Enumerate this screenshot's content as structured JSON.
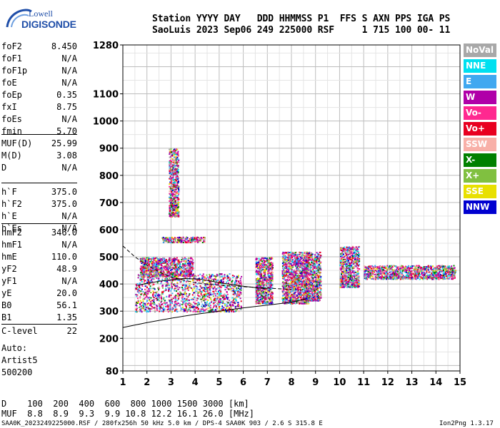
{
  "logo": {
    "line1": "Lowell",
    "line2": "DIGISONDE"
  },
  "header": {
    "line1": "Station YYYY DAY   DDD HHMMSS P1  FFS S AXN PPS IGA PS",
    "line2": "SaoLuis 2023 Sep06 249 225000 RSF     1 715 100 00- 11"
  },
  "params": {
    "group1": [
      {
        "name": "foF2",
        "value": "8.450"
      },
      {
        "name": "foF1",
        "value": "N/A"
      },
      {
        "name": "foF1p",
        "value": "N/A"
      },
      {
        "name": "foE",
        "value": "N/A"
      },
      {
        "name": "foEp",
        "value": "0.35"
      },
      {
        "name": "fxI",
        "value": "8.75"
      },
      {
        "name": "foEs",
        "value": "N/A"
      },
      {
        "name": "fmin",
        "value": "5.70"
      }
    ],
    "group2": [
      {
        "name": "MUF(D)",
        "value": "25.99"
      },
      {
        "name": "M(D)",
        "value": "3.08"
      },
      {
        "name": "D",
        "value": "N/A"
      }
    ],
    "group3": [
      {
        "name": "h`F",
        "value": "375.0"
      },
      {
        "name": "h`F2",
        "value": "375.0"
      },
      {
        "name": "h`E",
        "value": "N/A"
      },
      {
        "name": "h`Es",
        "value": "N/A"
      }
    ],
    "group4": [
      {
        "name": "hmF2",
        "value": "346.0"
      },
      {
        "name": "hmF1",
        "value": "N/A"
      },
      {
        "name": "hmE",
        "value": "110.0"
      },
      {
        "name": "yF2",
        "value": "48.9"
      },
      {
        "name": "yF1",
        "value": "N/A"
      },
      {
        "name": "yE",
        "value": "20.0"
      },
      {
        "name": "B0",
        "value": "56.1"
      },
      {
        "name": "B1",
        "value": "1.35"
      }
    ],
    "clevel": {
      "name": "C-level",
      "value": "22"
    },
    "auto": [
      "Auto:",
      "Artist5",
      "500200"
    ]
  },
  "footer": {
    "d_row": "D    100  200  400  600  800 1000 1500 3000 [km]",
    "muf_row": "MUF  8.8  8.9  9.3  9.9 10.8 12.2 16.1 26.0 [MHz]",
    "status": "SAA0K_2023249225000.RSF / 280fx256h 50 kHz 5.0 km / DPS-4 SAA0K 903 / 2.6 S 315.8 E",
    "version": "Ion2Png 1.3.17"
  },
  "legend": [
    {
      "label": "NoVal",
      "color": "#a8a8a8"
    },
    {
      "label": "NNE",
      "color": "#00e0f0"
    },
    {
      "label": "E",
      "color": "#40a8f0"
    },
    {
      "label": "W",
      "color": "#b000a8"
    },
    {
      "label": "Vo-",
      "color": "#ff2890"
    },
    {
      "label": "Vo+",
      "color": "#e80020"
    },
    {
      "label": "SSW",
      "color": "#f8b0a8"
    },
    {
      "label": "X-",
      "color": "#008000"
    },
    {
      "label": "X+",
      "color": "#80c040"
    },
    {
      "label": "SSE",
      "color": "#e8e000"
    },
    {
      "label": "NNW",
      "color": "#0000d0"
    }
  ],
  "chart_data": {
    "type": "scatter",
    "xlim": [
      1,
      15
    ],
    "ylim": [
      80,
      1280
    ],
    "y_ticks": [
      80,
      200,
      300,
      400,
      500,
      600,
      700,
      800,
      900,
      1000,
      1100,
      1280
    ],
    "x_ticks": [
      1,
      2,
      3,
      4,
      5,
      6,
      7,
      8,
      9,
      10,
      11,
      12,
      13,
      14,
      15
    ],
    "grid": true,
    "traces": [
      {
        "name": "upper dashed",
        "style": "dashed",
        "points": [
          [
            1,
            540
          ],
          [
            1.5,
            500
          ],
          [
            2,
            470
          ],
          [
            2.5,
            445
          ],
          [
            3,
            425
          ],
          [
            4,
            405
          ],
          [
            5,
            395
          ],
          [
            6,
            390
          ],
          [
            7,
            385
          ],
          [
            8,
            380
          ]
        ]
      },
      {
        "name": "lower profile",
        "style": "solid",
        "points": [
          [
            1,
            240
          ],
          [
            2,
            258
          ],
          [
            3,
            274
          ],
          [
            4,
            288
          ],
          [
            5,
            300
          ],
          [
            6,
            312
          ],
          [
            7,
            322
          ],
          [
            8,
            333
          ],
          [
            8.6,
            345
          ]
        ]
      },
      {
        "name": "mid arc",
        "style": "solid",
        "points": [
          [
            1.6,
            395
          ],
          [
            2.5,
            410
          ],
          [
            3.5,
            420
          ],
          [
            4.2,
            418
          ],
          [
            5,
            405
          ],
          [
            6,
            392
          ],
          [
            7,
            382
          ]
        ]
      }
    ],
    "clusters": [
      {
        "x": [
          1.5,
          5.9
        ],
        "y": [
          300,
          440
        ]
      },
      {
        "x": [
          1.7,
          3.9
        ],
        "y": [
          430,
          500
        ]
      },
      {
        "x": [
          2.6,
          4.4
        ],
        "y": [
          555,
          575
        ]
      },
      {
        "x": [
          6.5,
          7.2
        ],
        "y": [
          330,
          500
        ]
      },
      {
        "x": [
          7.6,
          8.7
        ],
        "y": [
          330,
          520
        ]
      },
      {
        "x": [
          8.5,
          9.2
        ],
        "y": [
          340,
          520
        ]
      },
      {
        "x": [
          10.0,
          10.8
        ],
        "y": [
          390,
          540
        ]
      },
      {
        "x": [
          11.0,
          14.8
        ],
        "y": [
          420,
          470
        ]
      },
      {
        "x": [
          2.9,
          3.3
        ],
        "y": [
          650,
          900
        ]
      }
    ]
  }
}
